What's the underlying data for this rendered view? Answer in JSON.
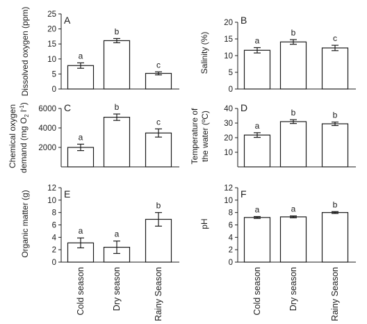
{
  "figure": {
    "categories": [
      "Cold season",
      "Dry season",
      "Rainy Season"
    ],
    "colors": {
      "ink": "#1a1a1a",
      "bar_fill": "#ffffff"
    }
  },
  "chart_data": [
    {
      "panel": "A",
      "type": "bar",
      "ylabel": "Dissolved oxygen (ppm)",
      "categories": [
        "Cold season",
        "Dry season",
        "Rainy Season"
      ],
      "values": [
        7.8,
        16.1,
        5.2
      ],
      "errors": [
        0.9,
        0.7,
        0.5
      ],
      "letters": [
        "a",
        "b",
        "c"
      ],
      "ylim": [
        0,
        25
      ],
      "yticks": [
        0,
        5,
        10,
        15,
        20,
        25
      ]
    },
    {
      "panel": "B",
      "type": "bar",
      "ylabel": "Salinity (%)",
      "categories": [
        "Cold season",
        "Dry season",
        "Rainy Season"
      ],
      "values": [
        11.6,
        14.1,
        12.3
      ],
      "errors": [
        0.8,
        0.7,
        0.8
      ],
      "letters": [
        "a",
        "b",
        "c"
      ],
      "ylim": [
        0,
        20
      ],
      "yticks": [
        0,
        5,
        10,
        15,
        20
      ]
    },
    {
      "panel": "C",
      "type": "bar",
      "ylabel": "Chemical oxygen demand (mg O2 l-1)",
      "categories": [
        "Cold season",
        "Dry season",
        "Rainy Season"
      ],
      "values": [
        2000,
        5100,
        3480
      ],
      "errors": [
        330,
        330,
        420
      ],
      "letters": [
        "a",
        "b",
        "c"
      ],
      "ylim": [
        0,
        6000
      ],
      "yticks": [
        2000,
        4000,
        6000
      ]
    },
    {
      "panel": "D",
      "type": "bar",
      "ylabel": "Temperature of the water (ºC)",
      "categories": [
        "Cold season",
        "Dry season",
        "Rainy Season"
      ],
      "values": [
        21.8,
        31.0,
        29.5
      ],
      "errors": [
        1.6,
        1.3,
        1.2
      ],
      "letters": [
        "a",
        "b",
        "b"
      ],
      "ylim": [
        0,
        40
      ],
      "yticks": [
        10,
        20,
        30,
        40
      ]
    },
    {
      "panel": "E",
      "type": "bar",
      "ylabel": "Organic matter (g)",
      "categories": [
        "Cold season",
        "Dry season",
        "Rainy Season"
      ],
      "values": [
        3.1,
        2.4,
        6.9
      ],
      "errors": [
        0.8,
        1.0,
        1.1
      ],
      "letters": [
        "a",
        "a",
        "b"
      ],
      "ylim": [
        0,
        12
      ],
      "yticks": [
        0,
        2,
        4,
        6,
        8,
        10,
        12
      ]
    },
    {
      "panel": "F",
      "type": "bar",
      "ylabel": "pH",
      "categories": [
        "Cold season",
        "Dry season",
        "Rainy Season"
      ],
      "values": [
        7.2,
        7.3,
        8.0
      ],
      "errors": [
        0.15,
        0.15,
        0.15
      ],
      "letters": [
        "a",
        "a",
        "b"
      ],
      "ylim": [
        0,
        12
      ],
      "yticks": [
        0,
        2,
        4,
        6,
        8,
        10,
        12
      ]
    }
  ]
}
